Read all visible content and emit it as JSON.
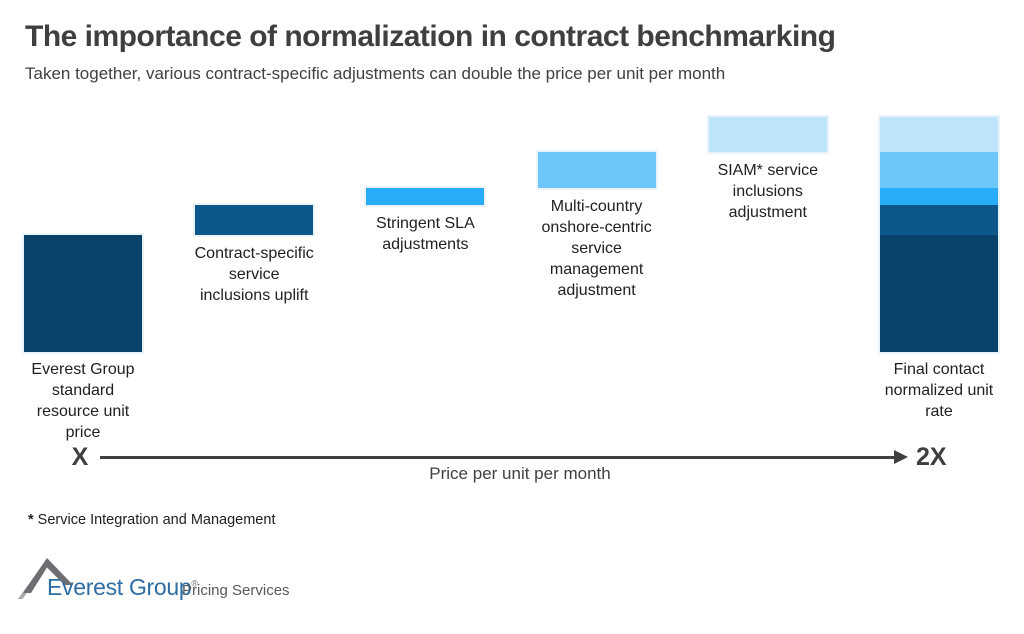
{
  "slide": {
    "title": "The importance of normalization in contract benchmarking",
    "subtitle": "Taken together, various contract-specific adjustments can double the price per unit per month"
  },
  "chart_data": {
    "type": "bar",
    "subtype": "waterfall",
    "title": "The importance of normalization in contract benchmarking",
    "xlabel": "Price per unit per month",
    "ylabel": "",
    "ylim": [
      0,
      2
    ],
    "grid": false,
    "legend": "none",
    "baseline_tick_label": "X",
    "end_tick_label": "2X",
    "value_unit": "multiples of the standard unit price (X)",
    "steps": [
      {
        "role": "base",
        "label": "Everest Group standard resource unit price",
        "label_lines": "Everest Group\nstandard\nresource unit\nprice",
        "value": 1.0,
        "color": "#09426A"
      },
      {
        "role": "increment",
        "label": "Contract-specific service inclusions uplift",
        "label_lines": "Contract-specific\nservice\ninclusions uplift",
        "value": 0.25,
        "color": "#0C578C"
      },
      {
        "role": "increment",
        "label": "Stringent SLA adjustments",
        "label_lines": "Stringent SLA\nadjustments",
        "value": 0.15,
        "color": "#29ACF7"
      },
      {
        "role": "increment",
        "label": "Multi-country onshore-centric service management adjustment",
        "label_lines": "Multi-country\nonshore-centric\nservice\nmanagement\nadjustment",
        "value": 0.3,
        "color": "#6CC6F8"
      },
      {
        "role": "increment",
        "label": "SIAM* service inclusions adjustment",
        "label_lines": "SIAM* service\ninclusions\nadjustment",
        "value": 0.3,
        "color": "#BDE4FB"
      },
      {
        "role": "total",
        "label": "Final contact normalized unit rate",
        "label_lines": "Final contact\nnormalized unit\nrate",
        "value": 2.0,
        "color": "stacked-from-steps"
      }
    ]
  },
  "axis": {
    "start_label": "X",
    "end_label": "2X",
    "title": "Price per unit per month"
  },
  "footnote": {
    "marker": "*",
    "text": " Service Integration and Management"
  },
  "logo": {
    "name": "Everest Group",
    "registered_mark": "®",
    "suffix": "Pricing Services"
  },
  "colors": {
    "background": "#FFFFFF",
    "title_text": "#3F3F3F",
    "label_text": "#212121",
    "axis_ink": "#404040",
    "bar_halo": "#EAF2FA",
    "brand_blue": "#2E6DA4",
    "logo_gray_dark": "#6D6E71",
    "logo_gray_light": "#A7A9AC"
  }
}
